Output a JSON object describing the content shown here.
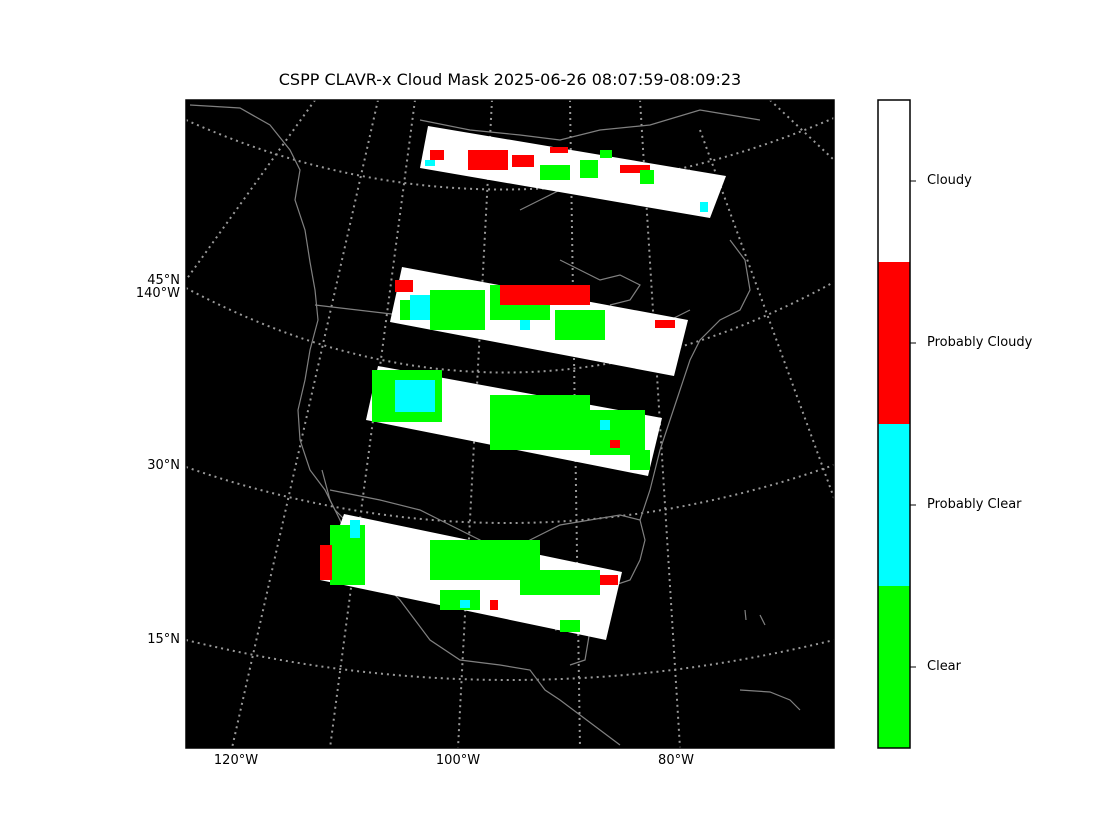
{
  "title": "CSPP CLAVR-x Cloud Mask 2025-06-26 08:07:59-08:09:23",
  "map": {
    "background": "#000000",
    "coast_color": "#808080",
    "grid_color": "#999999",
    "lat_labels": [
      "45°N",
      "30°N",
      "15°N"
    ],
    "lon_labels": [
      "120°W",
      "100°W",
      "80°W"
    ],
    "side_lon_label": "140°W"
  },
  "colorbar": {
    "classes": [
      {
        "label": "Clear",
        "color": "#00ff00"
      },
      {
        "label": "Probably Clear",
        "color": "#00ffff"
      },
      {
        "label": "Probably Cloudy",
        "color": "#ff0000"
      },
      {
        "label": "Cloudy",
        "color": "#ffffff"
      }
    ]
  }
}
